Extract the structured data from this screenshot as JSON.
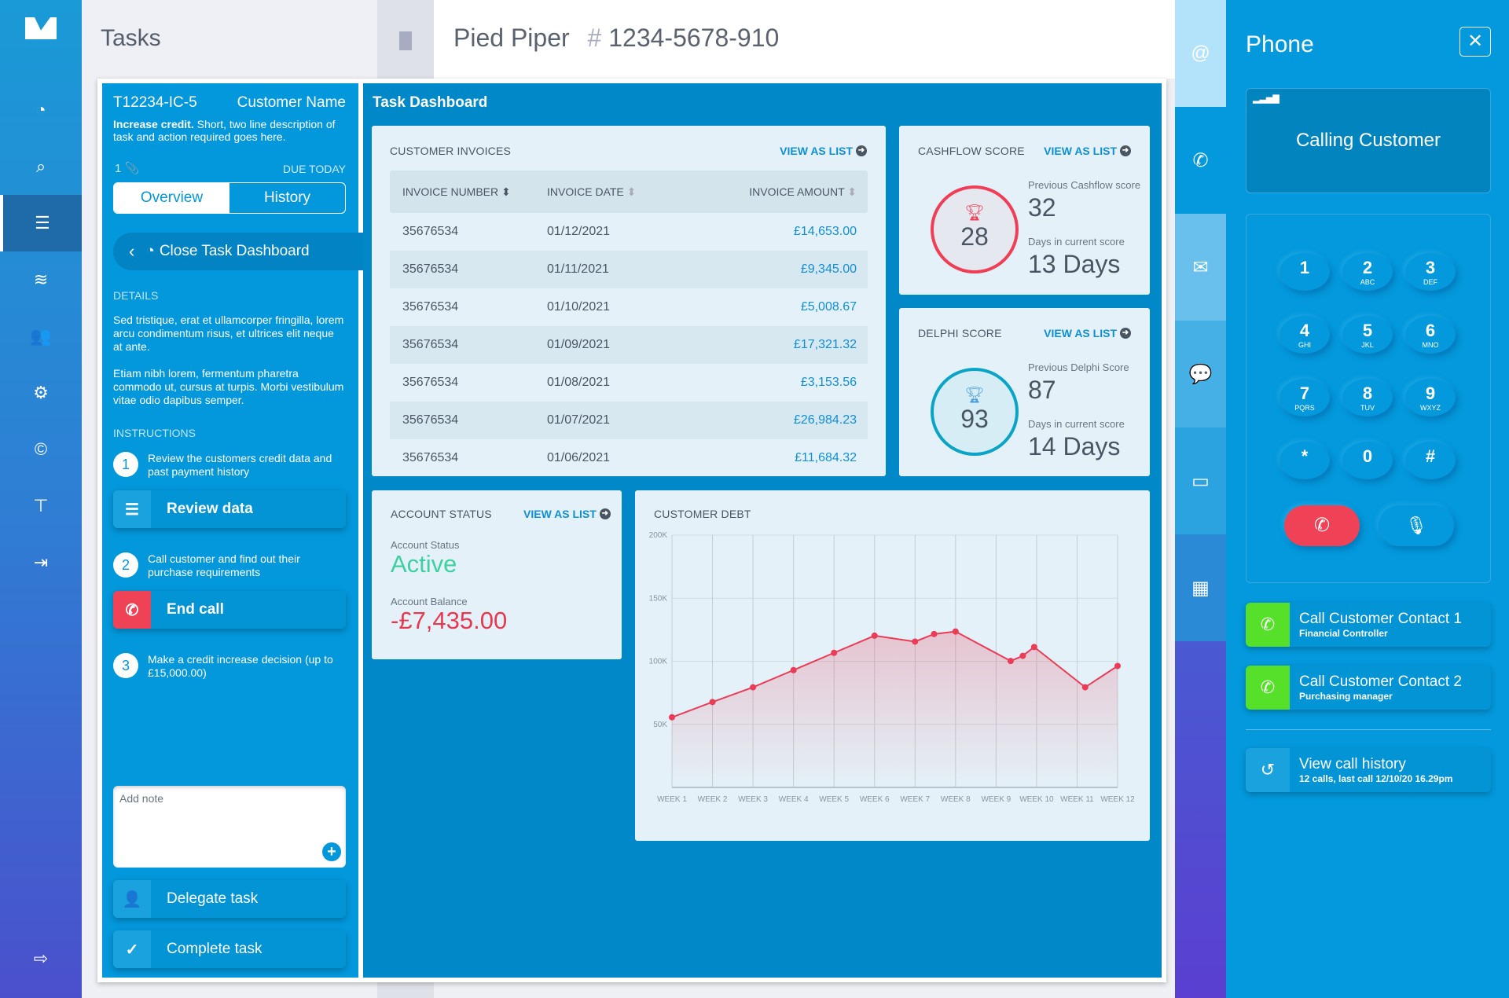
{
  "nav": {
    "logo": "V",
    "items": [
      {
        "icon": "dashboard-icon",
        "glyph": "◔"
      },
      {
        "icon": "search-icon",
        "glyph": "⌕"
      },
      {
        "icon": "list-icon",
        "glyph": "☰"
      },
      {
        "icon": "layers-icon",
        "glyph": "≋"
      },
      {
        "icon": "users-icon",
        "glyph": "👥"
      },
      {
        "icon": "dashboard-settings-icon",
        "glyph": "⚙"
      },
      {
        "icon": "copyright-icon",
        "glyph": "©"
      },
      {
        "icon": "org-chart-icon",
        "glyph": "⊤"
      },
      {
        "icon": "import-icon",
        "glyph": "⇥"
      }
    ],
    "logout_glyph": "⇨"
  },
  "tasks_title": "Tasks",
  "header": {
    "company": "Pied Piper",
    "hash": "#",
    "account": "1234-5678-910"
  },
  "task": {
    "id": "T12234-IC-5",
    "customer": "Customer Name",
    "desc_bold": "Increase credit.",
    "desc": " Short, two line description of task and action required goes here.",
    "attachments": "1",
    "due": "DUE TODAY",
    "tabs": [
      "Overview",
      "History"
    ],
    "close_label": "Close Task Dashboard",
    "details_heading": "DETAILS",
    "details": [
      "Sed tristique, erat et ullamcorper fringilla, lorem arcu condimentum risus, et ultrices elit neque at ante.",
      "Etiam nibh lorem, fermentum pharetra commodo ut, cursus at turpis. Morbi vestibulum vitae odio dapibus semper."
    ],
    "instructions_heading": "INSTRUCTIONS",
    "steps": [
      {
        "n": "1",
        "text": "Review the customers credit data and past payment history"
      },
      {
        "n": "2",
        "text": "Call customer and find out their purchase requirements"
      },
      {
        "n": "3",
        "text": "Make a credit increase decision (up to £15,000.00)"
      }
    ],
    "review_label": "Review data",
    "endcall_label": "End call",
    "note_placeholder": "Add note",
    "delegate_label": "Delegate task",
    "complete_label": "Complete task"
  },
  "dashboard": {
    "title": "Task Dashboard",
    "view_as_list": "VIEW AS LIST",
    "invoices": {
      "title": "CUSTOMER INVOICES",
      "columns": [
        "INVOICE NUMBER",
        "INVOICE DATE",
        "INVOICE AMOUNT"
      ],
      "rows": [
        [
          "35676534",
          "01/12/2021",
          "£14,653.00"
        ],
        [
          "35676534",
          "01/11/2021",
          "£9,345.00"
        ],
        [
          "35676534",
          "01/10/2021",
          "£5,008.67"
        ],
        [
          "35676534",
          "01/09/2021",
          "£17,321.32"
        ],
        [
          "35676534",
          "01/08/2021",
          "£3,153.56"
        ],
        [
          "35676534",
          "01/07/2021",
          "£26,984.23"
        ],
        [
          "35676534",
          "01/06/2021",
          "£11,684.32"
        ]
      ]
    },
    "cashflow": {
      "title": "CASHFLOW SCORE",
      "score": "28",
      "prev_label": "Previous Cashflow score",
      "prev": "32",
      "days_label": "Days in current score",
      "days": "13 Days",
      "color": "#ef3e55"
    },
    "delphi": {
      "title": "DELPHI SCORE",
      "score": "93",
      "prev_label": "Previous Delphi Score",
      "prev": "87",
      "days_label": "Days in current score",
      "days": "14 Days",
      "color": "#0aa4c8"
    },
    "account": {
      "title": "ACCOUNT STATUS",
      "status_label": "Account Status",
      "status": "Active",
      "balance_label": "Account Balance",
      "balance": "-£7,435.00",
      "status_color": "#3fd0a0",
      "balance_color": "#e8384f"
    }
  },
  "chart_data": {
    "type": "area",
    "title": "CUSTOMER DEBT",
    "categories": [
      "WEEK 1",
      "WEEK 2",
      "WEEK 3",
      "WEEK 4",
      "WEEK 5",
      "WEEK 6",
      "WEEK 7",
      "WEEK 8",
      "WEEK 9",
      "WEEK 10",
      "WEEK 11",
      "WEEK 12"
    ],
    "yticks": [
      "50K",
      "100K",
      "150K",
      "200K"
    ],
    "ylim": [
      0,
      200000
    ],
    "grid": true,
    "color": "#ea3c56",
    "points": [
      [
        1,
        55600
      ],
      [
        2,
        67700
      ],
      [
        3,
        79400
      ],
      [
        4,
        93000
      ],
      [
        5,
        106700
      ],
      [
        6,
        120300
      ],
      [
        7,
        115600
      ],
      [
        7.47,
        121600
      ],
      [
        8,
        123600
      ],
      [
        9.36,
        100200
      ],
      [
        9.66,
        104300
      ],
      [
        9.94,
        111300
      ],
      [
        11.2,
        79400
      ],
      [
        12,
        96300
      ]
    ]
  },
  "strip": [
    {
      "icon": "at-icon",
      "glyph": "@",
      "bg": "#b3e3fa"
    },
    {
      "icon": "phone-icon",
      "glyph": "✆",
      "bg": "#0399dc"
    },
    {
      "icon": "mail-icon",
      "glyph": "✉",
      "bg": "#6ac0ec"
    },
    {
      "icon": "sms-icon",
      "glyph": "💬",
      "bg": "#45b0e6"
    },
    {
      "icon": "note-icon",
      "glyph": "▭",
      "bg": "#2aa3e0"
    },
    {
      "icon": "calendar-icon",
      "glyph": "▦",
      "bg": "#2b8ad6"
    }
  ],
  "phone": {
    "title": "Phone",
    "status": "Calling Customer",
    "keys": [
      [
        "1",
        ""
      ],
      [
        "2",
        "ABC"
      ],
      [
        "3",
        "DEF"
      ],
      [
        "4",
        "GHI"
      ],
      [
        "5",
        "JKL"
      ],
      [
        "6",
        "MNO"
      ],
      [
        "7",
        "PQRS"
      ],
      [
        "8",
        "TUV"
      ],
      [
        "9",
        "WXYZ"
      ],
      [
        "*",
        ""
      ],
      [
        "0",
        ""
      ],
      [
        "#",
        ""
      ]
    ],
    "contacts": [
      {
        "name": "Call Customer Contact 1",
        "role": "Financial Controller"
      },
      {
        "name": "Call Customer Contact 2",
        "role": "Purchasing manager"
      }
    ],
    "history": {
      "label": "View call history",
      "detail": "12 calls, last call 12/10/20 16.29pm"
    },
    "end_color": "#ef4257",
    "call_color": "#56e02a"
  }
}
